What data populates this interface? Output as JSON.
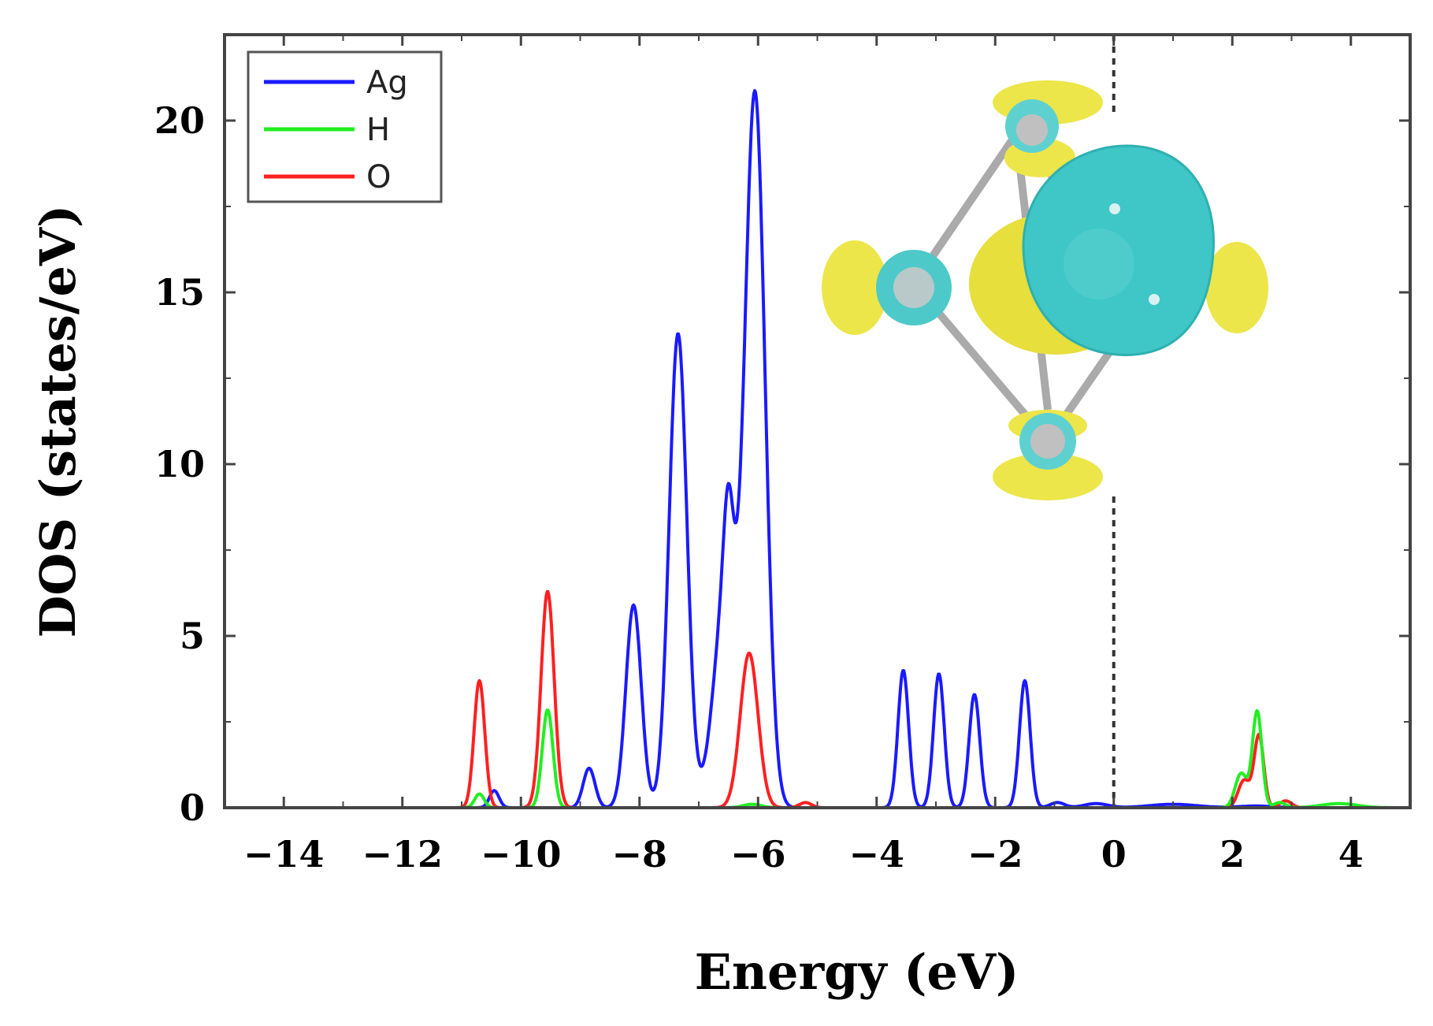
{
  "chart_data": {
    "type": "line",
    "title": "",
    "xlabel": "Energy (eV)",
    "ylabel": "DOS (states/eV)",
    "xlim": [
      -15,
      5
    ],
    "ylim": [
      0,
      22.5
    ],
    "x_ticks": [
      -14,
      -12,
      -10,
      -8,
      -6,
      -4,
      -2,
      0,
      2,
      4
    ],
    "x_tick_labels": [
      "−14",
      "−12",
      "−10",
      "−8",
      "−6",
      "−4",
      "−2",
      "0",
      "2",
      "4"
    ],
    "y_ticks": [
      0,
      5,
      10,
      15,
      20
    ],
    "y_tick_labels": [
      "0",
      "5",
      "10",
      "15",
      "20"
    ],
    "fermi_level": 0,
    "legend_position": "top-left",
    "inset": "charge-density isosurface of the Ag cluster with adsorbed species (yellow and cyan lobes)",
    "series": [
      {
        "name": "Ag",
        "color": "#1a1aff",
        "peaks": [
          {
            "center": -10.45,
            "height": 0.5,
            "width": 0.08
          },
          {
            "center": -8.85,
            "height": 1.15,
            "width": 0.1
          },
          {
            "center": -8.1,
            "height": 5.9,
            "width": 0.13
          },
          {
            "center": -7.35,
            "height": 13.8,
            "width": 0.15
          },
          {
            "center": -6.55,
            "height": 6.0,
            "width": 0.2
          },
          {
            "center": -6.05,
            "height": 20.6,
            "width": 0.17
          },
          {
            "center": -6.5,
            "height": 3.0,
            "width": 0.08
          },
          {
            "center": -3.55,
            "height": 4.0,
            "width": 0.09
          },
          {
            "center": -2.95,
            "height": 3.9,
            "width": 0.09
          },
          {
            "center": -2.35,
            "height": 3.3,
            "width": 0.09
          },
          {
            "center": -1.5,
            "height": 3.7,
            "width": 0.09
          },
          {
            "center": -0.95,
            "height": 0.15,
            "width": 0.12
          },
          {
            "center": -0.3,
            "height": 0.12,
            "width": 0.2
          },
          {
            "center": 1.0,
            "height": 0.1,
            "width": 0.4
          },
          {
            "center": 2.4,
            "height": 0.05,
            "width": 0.3
          }
        ]
      },
      {
        "name": "H",
        "color": "#22ee22",
        "peaks": [
          {
            "center": -10.7,
            "height": 0.4,
            "width": 0.08
          },
          {
            "center": -9.55,
            "height": 2.85,
            "width": 0.09
          },
          {
            "center": -6.1,
            "height": 0.1,
            "width": 0.15
          },
          {
            "center": 2.15,
            "height": 1.0,
            "width": 0.1
          },
          {
            "center": 2.42,
            "height": 2.8,
            "width": 0.08
          },
          {
            "center": 2.8,
            "height": 0.15,
            "width": 0.1
          },
          {
            "center": 3.8,
            "height": 0.12,
            "width": 0.3
          }
        ]
      },
      {
        "name": "O",
        "color": "#ff2020",
        "peaks": [
          {
            "center": -10.7,
            "height": 3.7,
            "width": 0.09
          },
          {
            "center": -9.55,
            "height": 6.3,
            "width": 0.11
          },
          {
            "center": -6.15,
            "height": 4.5,
            "width": 0.15
          },
          {
            "center": -5.2,
            "height": 0.15,
            "width": 0.1
          },
          {
            "center": 2.2,
            "height": 0.8,
            "width": 0.1
          },
          {
            "center": 2.45,
            "height": 2.1,
            "width": 0.08
          },
          {
            "center": 2.9,
            "height": 0.2,
            "width": 0.1
          }
        ]
      }
    ]
  }
}
